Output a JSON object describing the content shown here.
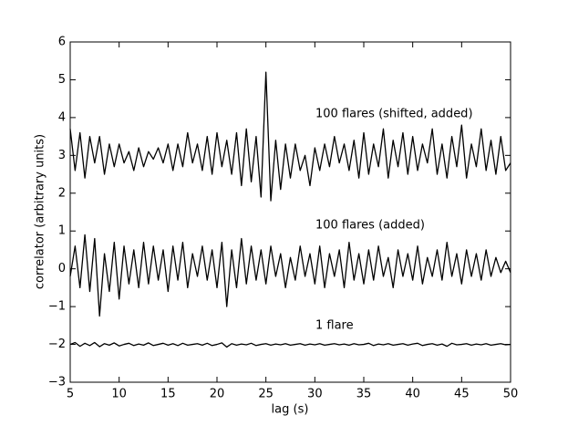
{
  "chart_data": {
    "type": "line",
    "x_label": "lag (s)",
    "y_label": "correlator (arbitrary units)",
    "x": [
      5,
      5.5,
      6,
      6.5,
      7,
      7.5,
      8,
      8.5,
      9,
      9.5,
      10,
      10.5,
      11,
      11.5,
      12,
      12.5,
      13,
      13.5,
      14,
      14.5,
      15,
      15.5,
      16,
      16.5,
      17,
      17.5,
      18,
      18.5,
      19,
      19.5,
      20,
      20.5,
      21,
      21.5,
      22,
      22.5,
      23,
      23.5,
      24,
      24.5,
      25,
      25.5,
      26,
      26.5,
      27,
      27.5,
      28,
      28.5,
      29,
      29.5,
      30,
      30.5,
      31,
      31.5,
      32,
      32.5,
      33,
      33.5,
      34,
      34.5,
      35,
      35.5,
      36,
      36.5,
      37,
      37.5,
      38,
      38.5,
      39,
      39.5,
      40,
      40.5,
      41,
      41.5,
      42,
      42.5,
      43,
      43.5,
      44,
      44.5,
      45,
      45.5,
      46,
      46.5,
      47,
      47.5,
      48,
      48.5,
      49,
      49.5,
      50
    ],
    "series": [
      {
        "name": "100 flares (shifted, added)",
        "color": "#000000",
        "values": [
          3.7,
          2.6,
          3.6,
          2.4,
          3.5,
          2.8,
          3.5,
          2.5,
          3.3,
          2.7,
          3.3,
          2.8,
          3.1,
          2.6,
          3.2,
          2.7,
          3.1,
          2.9,
          3.2,
          2.8,
          3.3,
          2.6,
          3.3,
          2.7,
          3.6,
          2.8,
          3.3,
          2.6,
          3.5,
          2.5,
          3.6,
          2.7,
          3.4,
          2.5,
          3.6,
          2.2,
          3.7,
          2.3,
          3.5,
          1.9,
          5.2,
          1.8,
          3.4,
          2.1,
          3.3,
          2.4,
          3.3,
          2.6,
          3.0,
          2.2,
          3.2,
          2.6,
          3.3,
          2.7,
          3.5,
          2.8,
          3.3,
          2.6,
          3.4,
          2.4,
          3.6,
          2.5,
          3.3,
          2.7,
          3.7,
          2.4,
          3.4,
          2.7,
          3.6,
          2.5,
          3.5,
          2.6,
          3.3,
          2.8,
          3.7,
          2.5,
          3.3,
          2.4,
          3.5,
          2.7,
          3.8,
          2.4,
          3.3,
          2.7,
          3.7,
          2.6,
          3.4,
          2.5,
          3.5,
          2.6,
          2.8
        ]
      },
      {
        "name": "100 flares (added)",
        "color": "#000000",
        "values": [
          -0.2,
          0.6,
          -0.5,
          0.9,
          -0.6,
          0.8,
          -1.25,
          0.4,
          -0.6,
          0.7,
          -0.8,
          0.6,
          -0.4,
          0.5,
          -0.5,
          0.7,
          -0.4,
          0.6,
          -0.3,
          0.5,
          -0.6,
          0.6,
          -0.3,
          0.7,
          -0.5,
          0.4,
          -0.2,
          0.6,
          -0.3,
          0.5,
          -0.5,
          0.7,
          -1.0,
          0.5,
          -0.5,
          0.8,
          -0.4,
          0.6,
          -0.3,
          0.5,
          -0.4,
          0.6,
          -0.2,
          0.4,
          -0.5,
          0.3,
          -0.3,
          0.6,
          -0.2,
          0.4,
          -0.4,
          0.6,
          -0.5,
          0.4,
          -0.2,
          0.5,
          -0.5,
          0.7,
          -0.3,
          0.4,
          -0.4,
          0.5,
          -0.3,
          0.6,
          -0.2,
          0.3,
          -0.5,
          0.5,
          -0.2,
          0.4,
          -0.3,
          0.6,
          -0.4,
          0.3,
          -0.2,
          0.5,
          -0.3,
          0.7,
          -0.2,
          0.4,
          -0.4,
          0.5,
          -0.2,
          0.4,
          -0.3,
          0.5,
          -0.2,
          0.3,
          -0.1,
          0.2,
          -0.1
        ]
      },
      {
        "name": "1 flare",
        "color": "#000000",
        "values": [
          -2.0,
          -1.95,
          -2.05,
          -1.97,
          -2.03,
          -1.95,
          -2.06,
          -1.98,
          -2.02,
          -1.96,
          -2.04,
          -2.0,
          -1.97,
          -2.03,
          -1.99,
          -2.02,
          -1.96,
          -2.03,
          -2.0,
          -1.97,
          -2.02,
          -1.98,
          -2.03,
          -1.97,
          -2.02,
          -2.0,
          -1.98,
          -2.02,
          -1.97,
          -2.03,
          -2.0,
          -1.96,
          -2.07,
          -1.98,
          -2.02,
          -1.99,
          -2.01,
          -1.97,
          -2.03,
          -2.0,
          -1.98,
          -2.02,
          -1.99,
          -2.01,
          -1.98,
          -2.02,
          -2.0,
          -1.98,
          -2.02,
          -1.99,
          -2.01,
          -1.98,
          -2.02,
          -2.0,
          -1.98,
          -2.01,
          -1.99,
          -2.02,
          -1.98,
          -2.01,
          -2.0,
          -1.97,
          -2.03,
          -1.99,
          -2.01,
          -1.98,
          -2.02,
          -2.0,
          -1.98,
          -2.02,
          -1.99,
          -1.97,
          -2.03,
          -2.0,
          -1.98,
          -2.02,
          -1.99,
          -2.05,
          -1.97,
          -2.01,
          -2.0,
          -1.98,
          -2.02,
          -1.99,
          -2.01,
          -1.98,
          -2.02,
          -2.0,
          -1.98,
          -2.01,
          -2.0
        ]
      }
    ],
    "xlim": [
      5,
      50
    ],
    "xticks": [
      5,
      10,
      15,
      20,
      25,
      30,
      35,
      40,
      45,
      50
    ],
    "ylim": [
      -3,
      6
    ],
    "yticks": [
      {
        "value": -3,
        "label": "−3"
      },
      {
        "value": -2,
        "label": "−2"
      },
      {
        "value": -1,
        "label": "−1"
      },
      0,
      1,
      2,
      3,
      4,
      5,
      6
    ],
    "grid": false
  }
}
